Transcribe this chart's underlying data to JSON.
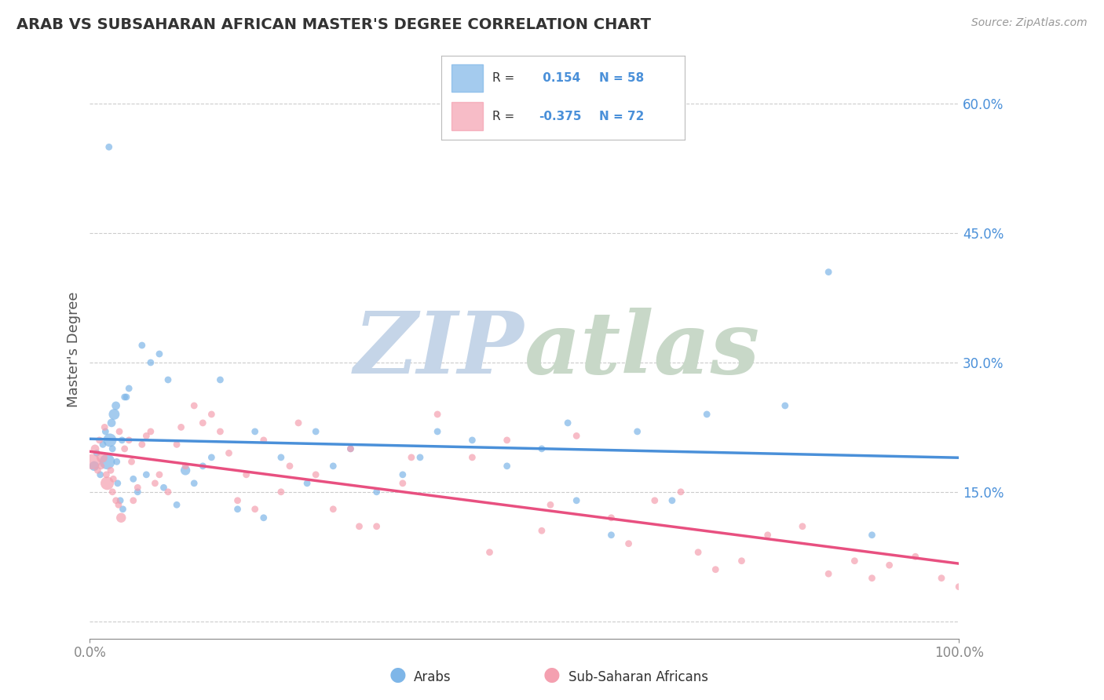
{
  "title": "ARAB VS SUBSAHARAN AFRICAN MASTER'S DEGREE CORRELATION CHART",
  "source_text": "Source: ZipAtlas.com",
  "xlabel_arab": "Arabs",
  "xlabel_subsaharan": "Sub-Saharan Africans",
  "ylabel": "Master's Degree",
  "xlim": [
    0.0,
    100.0
  ],
  "ylim": [
    -2.0,
    65.0
  ],
  "yticks": [
    0.0,
    15.0,
    30.0,
    45.0,
    60.0
  ],
  "xtick_labels": [
    "0.0%",
    "100.0%"
  ],
  "ytick_labels": [
    "",
    "15.0%",
    "30.0%",
    "45.0%",
    "60.0%"
  ],
  "r_arab": 0.154,
  "n_arab": 58,
  "r_subsaharan": -0.375,
  "n_subsaharan": 72,
  "color_arab": "#7EB6E8",
  "color_subsaharan": "#F4A0B0",
  "color_arab_line": "#4A90D9",
  "color_subsaharan_line": "#E85080",
  "background_color": "#FFFFFF",
  "grid_color": "#CCCCCC",
  "watermark_zip": "ZIP",
  "watermark_atlas": "atlas",
  "watermark_color_zip": "#C5D5E8",
  "watermark_color_atlas": "#C8D8C8",
  "arab_x": [
    0.5,
    0.8,
    1.2,
    1.5,
    1.8,
    2.0,
    2.3,
    2.5,
    2.8,
    3.0,
    3.2,
    3.5,
    3.8,
    4.0,
    4.5,
    5.0,
    5.5,
    6.0,
    7.0,
    8.0,
    9.0,
    10.0,
    11.0,
    12.0,
    14.0,
    15.0,
    17.0,
    19.0,
    22.0,
    25.0,
    28.0,
    30.0,
    33.0,
    36.0,
    40.0,
    44.0,
    48.0,
    52.0,
    56.0,
    60.0,
    63.0,
    67.0,
    71.0,
    85.0,
    90.0,
    2.2,
    2.6,
    3.1,
    3.7,
    4.2,
    6.5,
    8.5,
    13.0,
    20.0,
    26.0,
    38.0,
    55.0,
    80.0
  ],
  "arab_y": [
    18.0,
    19.5,
    17.0,
    20.5,
    22.0,
    18.5,
    21.0,
    23.0,
    24.0,
    25.0,
    16.0,
    14.0,
    13.0,
    26.0,
    27.0,
    16.5,
    15.0,
    32.0,
    30.0,
    31.0,
    28.0,
    13.5,
    17.5,
    16.0,
    19.0,
    28.0,
    13.0,
    22.0,
    19.0,
    16.0,
    18.0,
    20.0,
    15.0,
    17.0,
    22.0,
    21.0,
    18.0,
    20.0,
    14.0,
    10.0,
    22.0,
    14.0,
    24.0,
    40.5,
    10.0,
    55.0,
    20.0,
    18.5,
    21.0,
    26.0,
    17.0,
    15.5,
    18.0,
    12.0,
    22.0,
    19.0,
    23.0,
    25.0
  ],
  "arab_sizes": [
    80,
    40,
    40,
    40,
    40,
    200,
    150,
    60,
    100,
    60,
    40,
    40,
    40,
    40,
    40,
    40,
    40,
    40,
    40,
    40,
    40,
    40,
    80,
    40,
    40,
    40,
    40,
    40,
    40,
    40,
    40,
    40,
    40,
    40,
    40,
    40,
    40,
    40,
    40,
    40,
    40,
    40,
    40,
    40,
    40,
    40,
    40,
    40,
    40,
    40,
    40,
    40,
    40,
    40,
    40,
    40,
    40,
    40
  ],
  "subsaharan_x": [
    0.3,
    0.6,
    0.9,
    1.1,
    1.4,
    1.7,
    2.0,
    2.4,
    2.7,
    3.0,
    3.3,
    3.6,
    4.0,
    4.5,
    5.0,
    5.5,
    6.0,
    6.5,
    7.0,
    8.0,
    9.0,
    10.0,
    11.0,
    12.0,
    13.0,
    14.0,
    15.0,
    16.0,
    17.0,
    18.0,
    20.0,
    22.0,
    24.0,
    26.0,
    28.0,
    30.0,
    33.0,
    36.0,
    40.0,
    44.0,
    48.0,
    52.0,
    56.0,
    60.0,
    65.0,
    70.0,
    75.0,
    1.3,
    1.9,
    2.6,
    3.4,
    4.8,
    7.5,
    10.5,
    19.0,
    23.0,
    31.0,
    37.0,
    46.0,
    53.0,
    62.0,
    68.0,
    72.0,
    78.0,
    82.0,
    88.0,
    92.0,
    95.0,
    98.0,
    85.0,
    90.0,
    100.0
  ],
  "subsaharan_y": [
    18.5,
    20.0,
    17.5,
    21.0,
    19.0,
    22.5,
    16.0,
    17.5,
    16.5,
    14.0,
    13.5,
    12.0,
    20.0,
    21.0,
    14.0,
    15.5,
    20.5,
    21.5,
    22.0,
    17.0,
    15.0,
    20.5,
    18.0,
    25.0,
    23.0,
    24.0,
    22.0,
    19.5,
    14.0,
    17.0,
    21.0,
    15.0,
    23.0,
    17.0,
    13.0,
    20.0,
    11.0,
    16.0,
    24.0,
    19.0,
    21.0,
    10.5,
    21.5,
    12.0,
    14.0,
    8.0,
    7.0,
    18.0,
    17.0,
    15.0,
    22.0,
    18.5,
    16.0,
    22.5,
    13.0,
    18.0,
    11.0,
    19.0,
    8.0,
    13.5,
    9.0,
    15.0,
    6.0,
    10.0,
    11.0,
    7.0,
    6.5,
    7.5,
    5.0,
    5.5,
    5.0,
    4.0
  ],
  "subsaharan_sizes": [
    200,
    60,
    40,
    40,
    100,
    40,
    150,
    40,
    40,
    40,
    40,
    80,
    40,
    40,
    40,
    40,
    40,
    40,
    40,
    40,
    40,
    40,
    40,
    40,
    40,
    40,
    40,
    40,
    40,
    40,
    40,
    40,
    40,
    40,
    40,
    40,
    40,
    40,
    40,
    40,
    40,
    40,
    40,
    40,
    40,
    40,
    40,
    40,
    40,
    40,
    40,
    40,
    40,
    40,
    40,
    40,
    40,
    40,
    40,
    40,
    40,
    40,
    40,
    40,
    40,
    40,
    40,
    40,
    40,
    40,
    40,
    40
  ]
}
